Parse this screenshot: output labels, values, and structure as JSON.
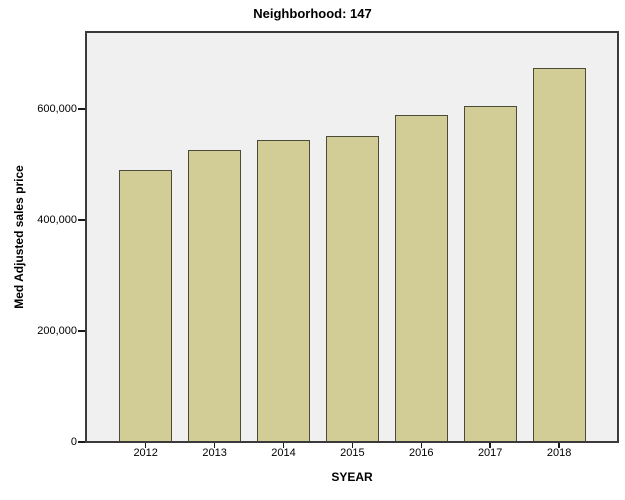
{
  "chart_data": {
    "type": "bar",
    "title": "Neighborhood: 147",
    "xlabel": "SYEAR",
    "ylabel": "Med Adjusted sales price",
    "categories": [
      "2012",
      "2013",
      "2014",
      "2015",
      "2016",
      "2017",
      "2018"
    ],
    "values": [
      489000,
      524000,
      543000,
      550000,
      588000,
      603000,
      673000
    ],
    "ylim": [
      0,
      740000
    ],
    "yticks": [
      0,
      200000,
      400000,
      600000
    ],
    "ytick_labels": [
      "0",
      "200,000",
      "400,000",
      "600,000"
    ],
    "grid": false,
    "legend_position": "none",
    "bar_fill_color": "#d2cd96",
    "bar_border_color": "#4c4a38",
    "plot_background_color": "#f0f0f0",
    "frame_border_color": "#3a3a3a"
  }
}
